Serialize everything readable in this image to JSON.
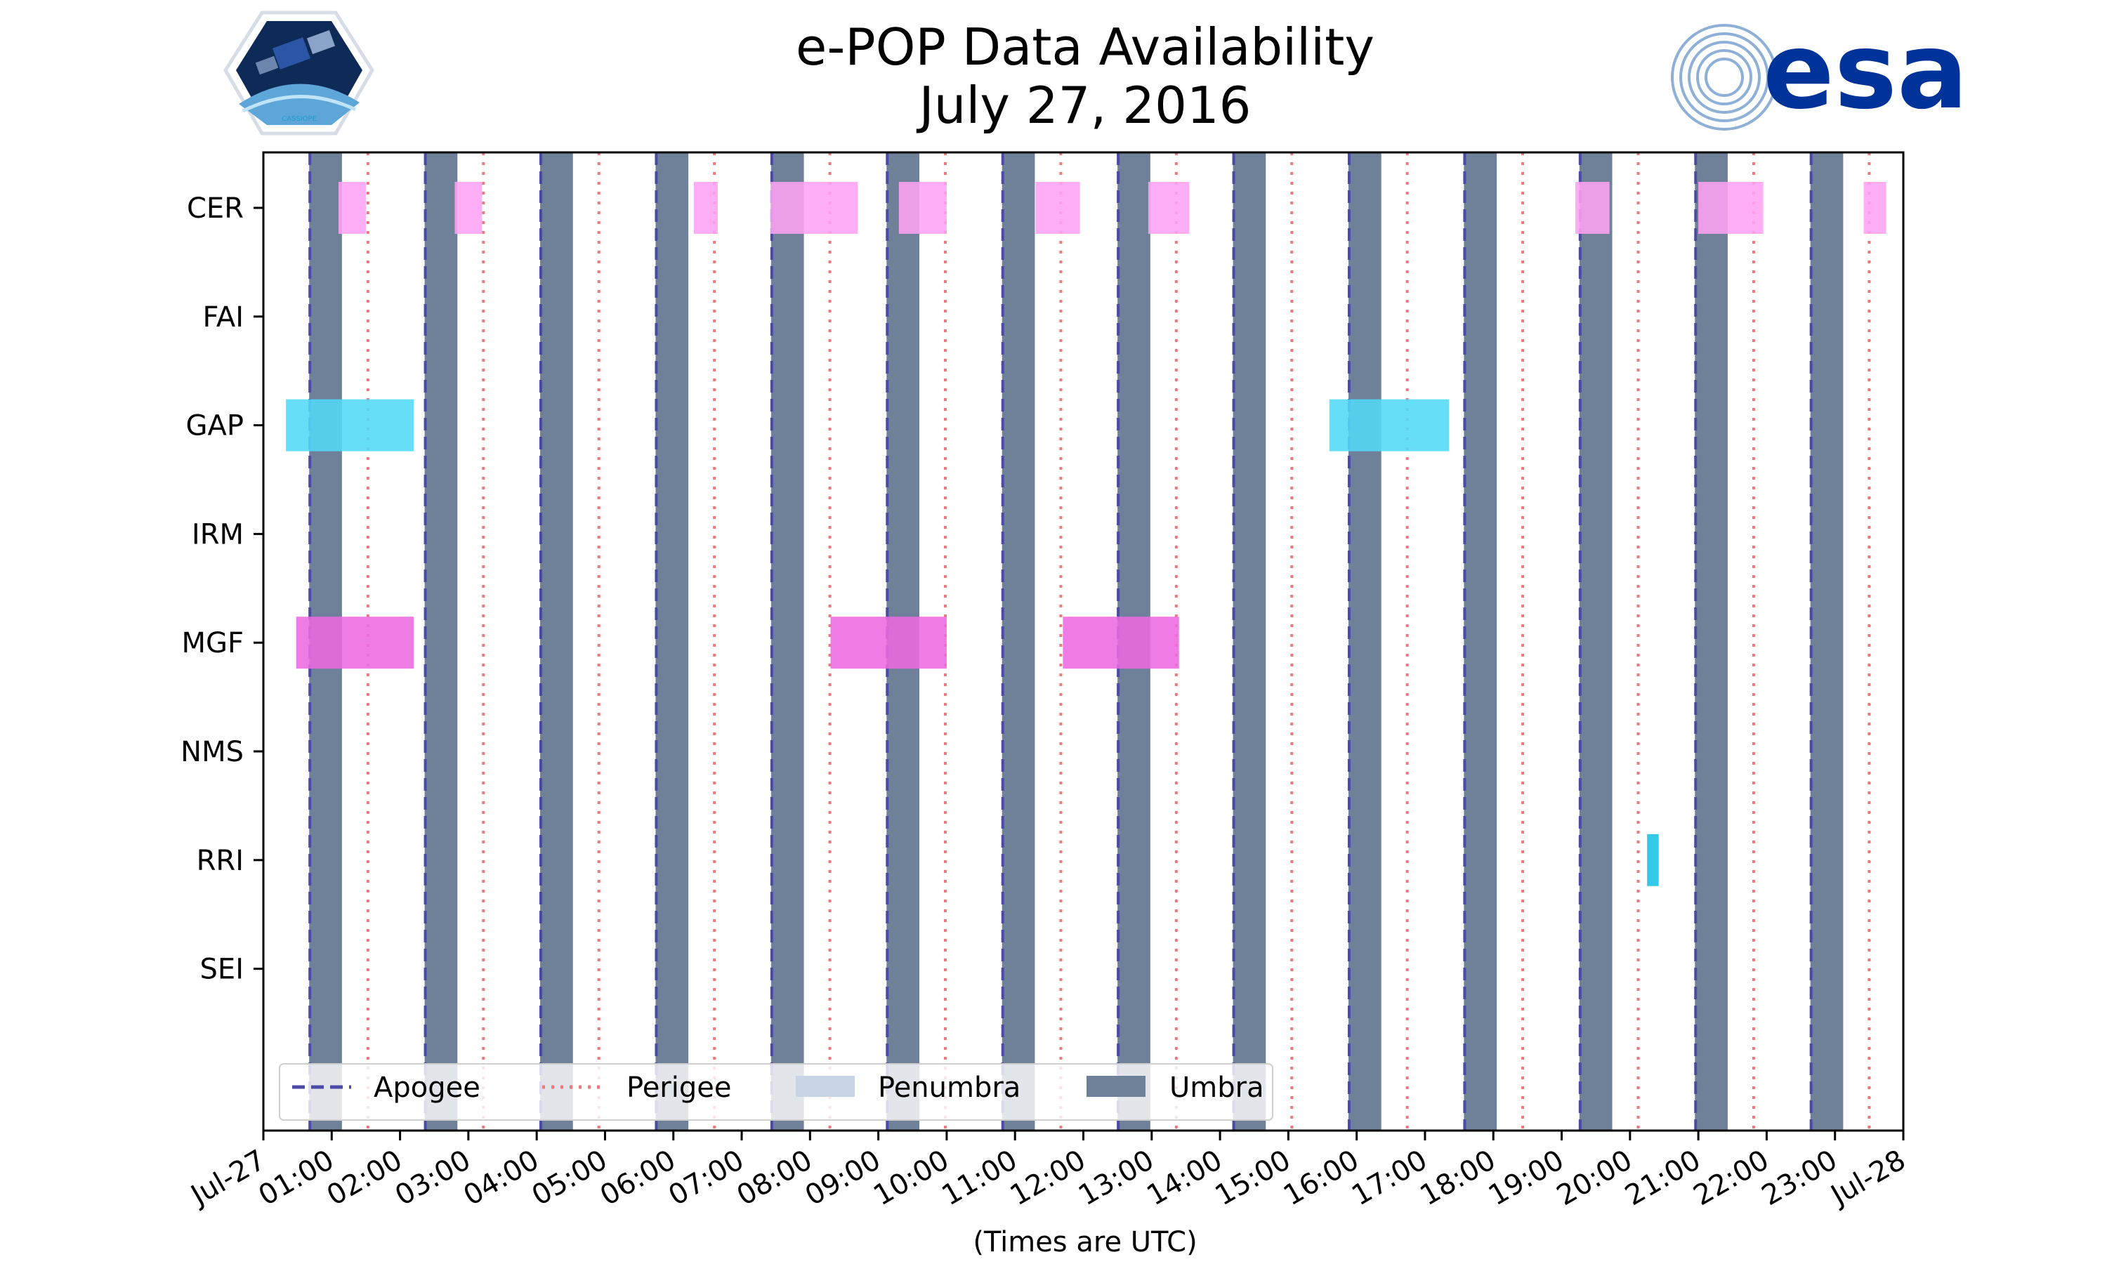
{
  "page": {
    "title_line1": "e-POP Data Availability",
    "title_line2": "July 27, 2016"
  },
  "logos": {
    "left": {
      "name": "cassiope-mission-logo",
      "text": "CASSIOPE"
    },
    "right": {
      "name": "esa-logo",
      "text": "esa"
    }
  },
  "colors": {
    "umbra": "#6f8198",
    "penumbra": "#c6d4e5",
    "apogee": "#4b4ba6",
    "perigee": "#f07878",
    "cer": "#ffa2f2",
    "gap": "#52daf7",
    "mgf": "#ec6ae0",
    "rri": "#35c8e8"
  },
  "chart_data": {
    "type": "timeline",
    "title": "e-POP Data Availability\nJuly 27, 2016",
    "xlabel": "(Times are UTC)",
    "ylabel": "",
    "x_unit": "hours UTC since 2016-07-27 00:00",
    "xlim": [
      0,
      24
    ],
    "x_ticks": [
      {
        "value": 0,
        "label": "Jul-27"
      },
      {
        "value": 1,
        "label": "01:00"
      },
      {
        "value": 2,
        "label": "02:00"
      },
      {
        "value": 3,
        "label": "03:00"
      },
      {
        "value": 4,
        "label": "04:00"
      },
      {
        "value": 5,
        "label": "05:00"
      },
      {
        "value": 6,
        "label": "06:00"
      },
      {
        "value": 7,
        "label": "07:00"
      },
      {
        "value": 8,
        "label": "08:00"
      },
      {
        "value": 9,
        "label": "09:00"
      },
      {
        "value": 10,
        "label": "10:00"
      },
      {
        "value": 11,
        "label": "11:00"
      },
      {
        "value": 12,
        "label": "12:00"
      },
      {
        "value": 13,
        "label": "13:00"
      },
      {
        "value": 14,
        "label": "14:00"
      },
      {
        "value": 15,
        "label": "15:00"
      },
      {
        "value": 16,
        "label": "16:00"
      },
      {
        "value": 17,
        "label": "17:00"
      },
      {
        "value": 18,
        "label": "18:00"
      },
      {
        "value": 19,
        "label": "19:00"
      },
      {
        "value": 20,
        "label": "20:00"
      },
      {
        "value": 21,
        "label": "21:00"
      },
      {
        "value": 22,
        "label": "22:00"
      },
      {
        "value": 23,
        "label": "23:00"
      },
      {
        "value": 24,
        "label": "Jul-28"
      }
    ],
    "instruments": [
      "CER",
      "FAI",
      "GAP",
      "IRM",
      "MGF",
      "NMS",
      "RRI",
      "SEI"
    ],
    "umbra": [
      [
        0.67,
        1.15
      ],
      [
        2.36,
        2.84
      ],
      [
        4.05,
        4.53
      ],
      [
        5.74,
        6.22
      ],
      [
        7.43,
        7.91
      ],
      [
        9.12,
        9.6
      ],
      [
        10.81,
        11.29
      ],
      [
        12.5,
        12.98
      ],
      [
        14.19,
        14.67
      ],
      [
        15.88,
        16.36
      ],
      [
        17.57,
        18.05
      ],
      [
        19.26,
        19.74
      ],
      [
        20.95,
        21.43
      ],
      [
        22.64,
        23.12
      ]
    ],
    "apogee": [
      0.68,
      2.37,
      4.06,
      5.75,
      7.44,
      9.13,
      10.82,
      12.51,
      14.2,
      15.89,
      17.58,
      19.27,
      20.96,
      22.65
    ],
    "perigee": [
      1.53,
      3.22,
      4.91,
      6.6,
      8.29,
      9.98,
      11.67,
      13.36,
      15.05,
      16.74,
      18.43,
      20.12,
      21.81,
      23.5
    ],
    "bars": [
      {
        "instrument": "CER",
        "start": 1.1,
        "end": 1.5
      },
      {
        "instrument": "CER",
        "start": 2.8,
        "end": 3.2
      },
      {
        "instrument": "CER",
        "start": 6.3,
        "end": 6.65
      },
      {
        "instrument": "CER",
        "start": 7.42,
        "end": 8.7
      },
      {
        "instrument": "CER",
        "start": 9.3,
        "end": 10.0
      },
      {
        "instrument": "CER",
        "start": 11.3,
        "end": 11.95
      },
      {
        "instrument": "CER",
        "start": 12.95,
        "end": 13.55
      },
      {
        "instrument": "CER",
        "start": 19.2,
        "end": 19.7
      },
      {
        "instrument": "CER",
        "start": 21.0,
        "end": 21.95
      },
      {
        "instrument": "CER",
        "start": 23.42,
        "end": 23.75
      },
      {
        "instrument": "GAP",
        "start": 0.33,
        "end": 2.2
      },
      {
        "instrument": "GAP",
        "start": 15.6,
        "end": 17.35
      },
      {
        "instrument": "MGF",
        "start": 0.48,
        "end": 2.2
      },
      {
        "instrument": "MGF",
        "start": 8.3,
        "end": 10.0
      },
      {
        "instrument": "MGF",
        "start": 11.7,
        "end": 13.4
      },
      {
        "instrument": "RRI",
        "start": 20.25,
        "end": 20.42
      }
    ],
    "legend": {
      "placement": "lower-left",
      "entries": [
        "Apogee",
        "Perigee",
        "Penumbra",
        "Umbra"
      ]
    }
  }
}
